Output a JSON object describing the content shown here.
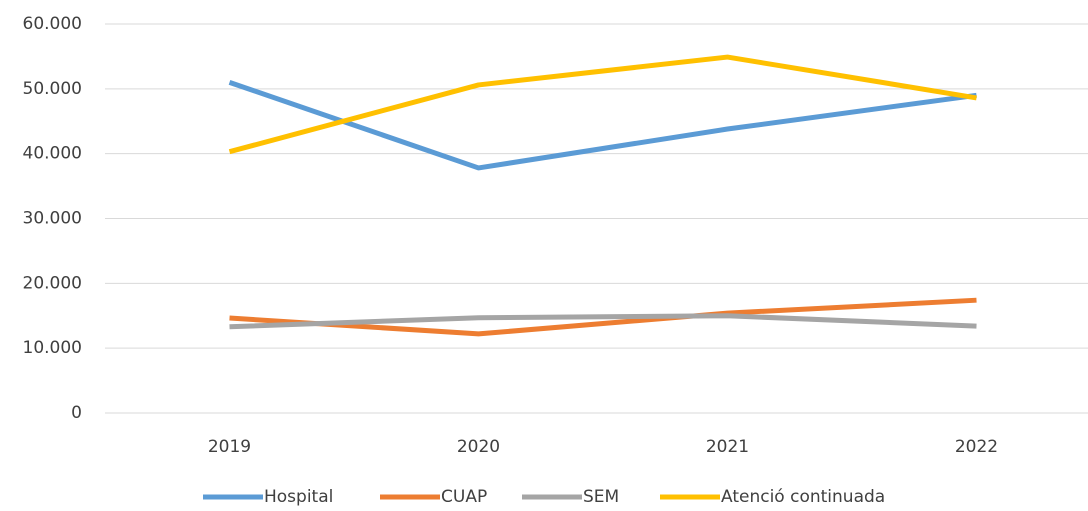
{
  "chart_data": {
    "type": "line",
    "categories": [
      "2019",
      "2020",
      "2021",
      "2022"
    ],
    "series": [
      {
        "name": "Hospital",
        "color": "#5b9bd5",
        "values": [
          51000,
          37800,
          43800,
          49000
        ]
      },
      {
        "name": "CUAP",
        "color": "#ed7d31",
        "values": [
          14650,
          12200,
          15400,
          17400
        ]
      },
      {
        "name": "SEM",
        "color": "#a5a5a5",
        "values": [
          13300,
          14700,
          15000,
          13400
        ]
      },
      {
        "name": "Atenció continuada",
        "color": "#ffc000",
        "values": [
          40300,
          50600,
          54900,
          48600
        ]
      }
    ],
    "ylim": [
      0,
      60000
    ],
    "yticks": [
      0,
      {
        "value": 10000,
        "label": "10.000"
      },
      {
        "value": 20000,
        "label": "20.000"
      },
      {
        "value": 30000,
        "label": "30.000"
      },
      {
        "value": 40000,
        "label": "40.000"
      },
      {
        "value": 50000,
        "label": "50.000"
      },
      {
        "value": 60000,
        "label": "60.000"
      }
    ],
    "grid": true,
    "legend": "bottom"
  }
}
